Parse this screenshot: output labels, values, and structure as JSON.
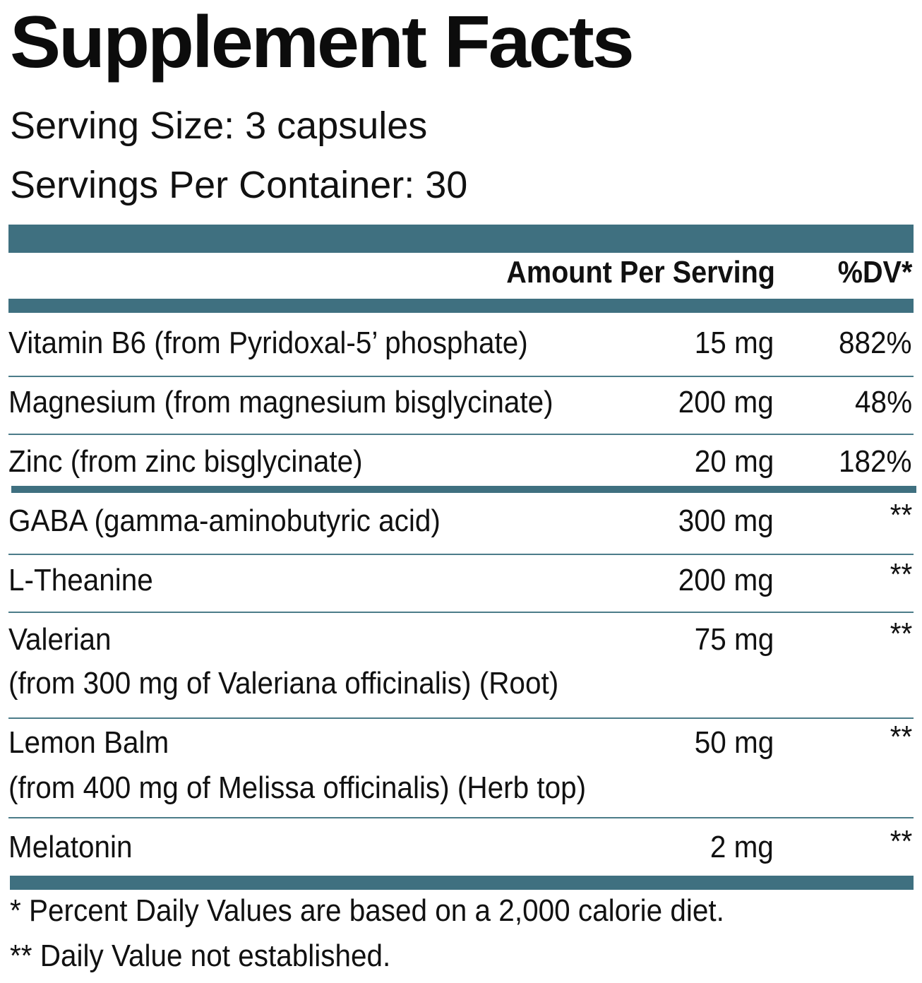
{
  "title": "Supplement Facts",
  "serving_size": "Serving Size: 3 capsules",
  "servings_per_container": "Servings Per Container: 30",
  "header": {
    "amount": "Amount Per Serving",
    "dv": "%DV*"
  },
  "rows": [
    {
      "name": "Vitamin B6 (from Pyridoxal-5’ phosphate)",
      "sub": "",
      "amount": "15 mg",
      "dv": "882%"
    },
    {
      "name": "Magnesium (from magnesium bisglycinate)",
      "sub": "",
      "amount": "200 mg",
      "dv": "48%"
    },
    {
      "name": "Zinc (from zinc bisglycinate)",
      "sub": "",
      "amount": "20 mg",
      "dv": "182%"
    },
    {
      "name": "GABA (gamma-aminobutyric acid)",
      "sub": "",
      "amount": "300 mg",
      "dv": "**"
    },
    {
      "name": "L-Theanine",
      "sub": "",
      "amount": "200 mg",
      "dv": "**"
    },
    {
      "name": "Valerian",
      "sub": "(from 300 mg of Valeriana officinalis) (Root)",
      "amount": "75 mg",
      "dv": "**"
    },
    {
      "name": "Lemon Balm",
      "sub": "(from 400 mg of Melissa officinalis) (Herb top)",
      "amount": "50 mg",
      "dv": "**"
    },
    {
      "name": "Melatonin",
      "sub": "",
      "amount": "2 mg",
      "dv": "**"
    }
  ],
  "footnotes": [
    "* Percent Daily Values are based on a 2,000 calorie diet.",
    "** Daily Value not established."
  ],
  "colors": {
    "accent": "#3f7080",
    "text": "#111111",
    "background": "#ffffff"
  }
}
